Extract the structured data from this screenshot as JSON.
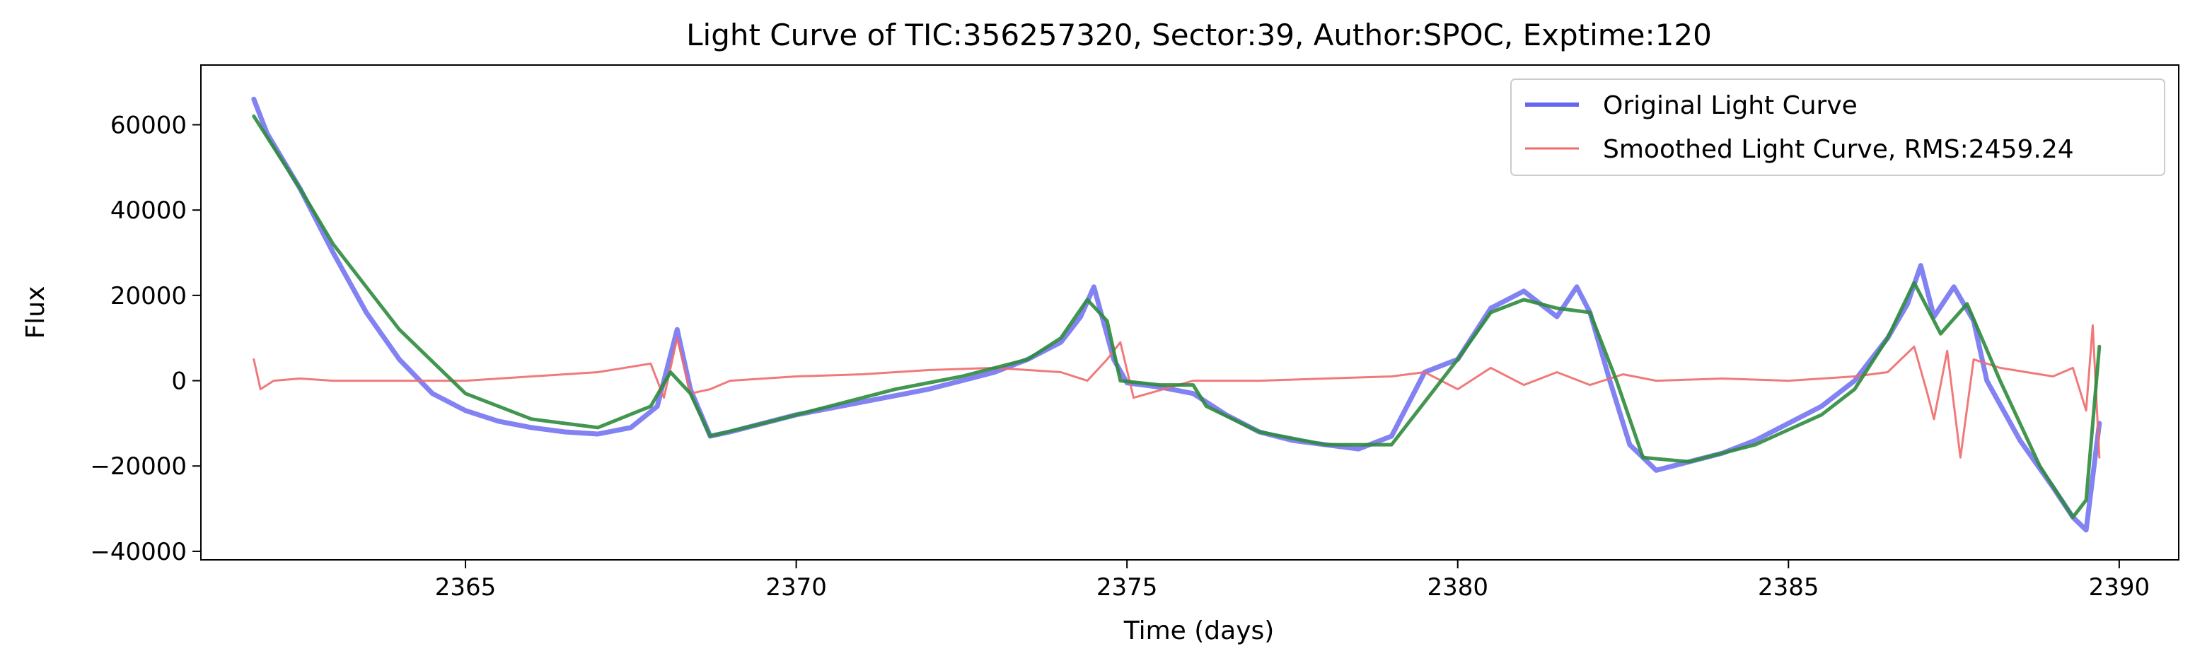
{
  "chart_data": {
    "type": "line",
    "title": "Light Curve of TIC:356257320, Sector:39, Author:SPOC, Exptime:120",
    "xlabel": "Time (days)",
    "ylabel": "Flux",
    "xlim": [
      2361.0,
      2390.9
    ],
    "ylim": [
      -42000,
      74000
    ],
    "x_ticks": [
      2365,
      2370,
      2375,
      2380,
      2385,
      2390
    ],
    "y_ticks": [
      -40000,
      -20000,
      0,
      20000,
      40000,
      60000
    ],
    "x_tick_labels": [
      "2365",
      "2370",
      "2375",
      "2380",
      "2385",
      "2390"
    ],
    "y_tick_labels": [
      "−40000",
      "−20000",
      "0",
      "20000",
      "40000",
      "60000"
    ],
    "grid": false,
    "legend_position": "top-right",
    "series": [
      {
        "name": "Original Light Curve",
        "color": "#6666f0",
        "x": [
          2361.8,
          2362.0,
          2362.5,
          2363.0,
          2363.5,
          2364.0,
          2364.5,
          2365.0,
          2365.5,
          2366.0,
          2366.5,
          2367.0,
          2367.5,
          2367.9,
          2368.2,
          2368.4,
          2368.7,
          2369.0,
          2369.5,
          2370.0,
          2370.5,
          2371.0,
          2371.5,
          2372.0,
          2372.5,
          2373.0,
          2373.5,
          2374.0,
          2374.3,
          2374.5,
          2374.8,
          2375.0,
          2375.5,
          2376.0,
          2376.5,
          2377.0,
          2377.5,
          2378.0,
          2378.5,
          2379.0,
          2379.5,
          2380.0,
          2380.5,
          2381.0,
          2381.5,
          2381.8,
          2382.0,
          2382.3,
          2382.6,
          2383.0,
          2383.5,
          2384.0,
          2384.5,
          2385.0,
          2385.5,
          2386.0,
          2386.5,
          2386.8,
          2387.0,
          2387.2,
          2387.5,
          2387.8,
          2388.0,
          2388.5,
          2389.0,
          2389.3,
          2389.5,
          2389.7
        ],
        "y": [
          66000,
          58000,
          45000,
          30000,
          16000,
          5000,
          -3000,
          -7000,
          -9500,
          -11000,
          -12000,
          -12500,
          -11000,
          -6000,
          12000,
          -2000,
          -13000,
          -12000,
          -10000,
          -8000,
          -6500,
          -5000,
          -3500,
          -2000,
          0,
          2000,
          5000,
          9000,
          15000,
          22000,
          5000,
          -500,
          -1500,
          -3000,
          -8000,
          -12000,
          -14000,
          -15000,
          -16000,
          -13000,
          2000,
          5000,
          17000,
          21000,
          15000,
          22000,
          16000,
          0,
          -15000,
          -21000,
          -19000,
          -17000,
          -14000,
          -10000,
          -6000,
          0,
          10000,
          18000,
          27000,
          15000,
          22000,
          14000,
          0,
          -14000,
          -25000,
          -32000,
          -35000,
          -10000
        ]
      },
      {
        "name": "Smoothed Light Curve, RMS:2459.24",
        "color": "#f06a6a",
        "x": [
          2361.8,
          2361.9,
          2362.1,
          2362.5,
          2363.0,
          2364.0,
          2365.0,
          2366.0,
          2367.0,
          2367.8,
          2368.0,
          2368.2,
          2368.4,
          2368.7,
          2369.0,
          2370.0,
          2371.0,
          2372.0,
          2373.0,
          2374.0,
          2374.4,
          2374.7,
          2374.9,
          2375.1,
          2376.0,
          2377.0,
          2378.0,
          2379.0,
          2379.5,
          2380.0,
          2380.5,
          2381.0,
          2381.5,
          2382.0,
          2382.5,
          2383.0,
          2384.0,
          2385.0,
          2386.0,
          2386.5,
          2386.9,
          2387.1,
          2387.2,
          2387.4,
          2387.6,
          2387.8,
          2388.2,
          2388.6,
          2389.0,
          2389.3,
          2389.5,
          2389.6,
          2389.7
        ],
        "y": [
          5000,
          -2000,
          0,
          500,
          0,
          0,
          0,
          1000,
          2000,
          4000,
          -4000,
          10000,
          -3000,
          -2000,
          0,
          1000,
          1500,
          2500,
          3000,
          2000,
          0,
          5000,
          9000,
          -4000,
          0,
          0,
          500,
          1000,
          2000,
          -2000,
          3000,
          -1000,
          2000,
          -1000,
          1500,
          0,
          500,
          0,
          1000,
          2000,
          8000,
          -3000,
          -9000,
          7000,
          -18000,
          5000,
          3000,
          2000,
          1000,
          3000,
          -7000,
          13000,
          -18000
        ]
      },
      {
        "color": "#2e8b3c",
        "x": [
          2361.8,
          2362.5,
          2363.0,
          2364.0,
          2365.0,
          2366.0,
          2367.0,
          2367.8,
          2368.1,
          2368.4,
          2368.7,
          2369.5,
          2370.5,
          2371.5,
          2372.5,
          2373.5,
          2374.0,
          2374.4,
          2374.7,
          2374.9,
          2375.5,
          2376.0,
          2376.2,
          2377.0,
          2378.0,
          2379.0,
          2379.5,
          2380.0,
          2380.5,
          2381.0,
          2381.5,
          2382.0,
          2382.4,
          2382.8,
          2383.5,
          2384.5,
          2385.5,
          2386.0,
          2386.5,
          2386.9,
          2387.3,
          2387.7,
          2388.2,
          2388.8,
          2389.3,
          2389.5,
          2389.7
        ],
        "y": [
          62000,
          45000,
          32000,
          12000,
          -3000,
          -9000,
          -11000,
          -6000,
          2000,
          -3000,
          -13000,
          -10000,
          -6000,
          -2000,
          1000,
          5000,
          10000,
          19000,
          14000,
          0,
          -1000,
          -1000,
          -6000,
          -12000,
          -15000,
          -15000,
          -5000,
          5000,
          16000,
          19000,
          17000,
          16000,
          0,
          -18000,
          -19000,
          -15000,
          -8000,
          -2000,
          10000,
          23000,
          11000,
          18000,
          0,
          -20000,
          -32000,
          -28000,
          8000
        ]
      }
    ]
  }
}
